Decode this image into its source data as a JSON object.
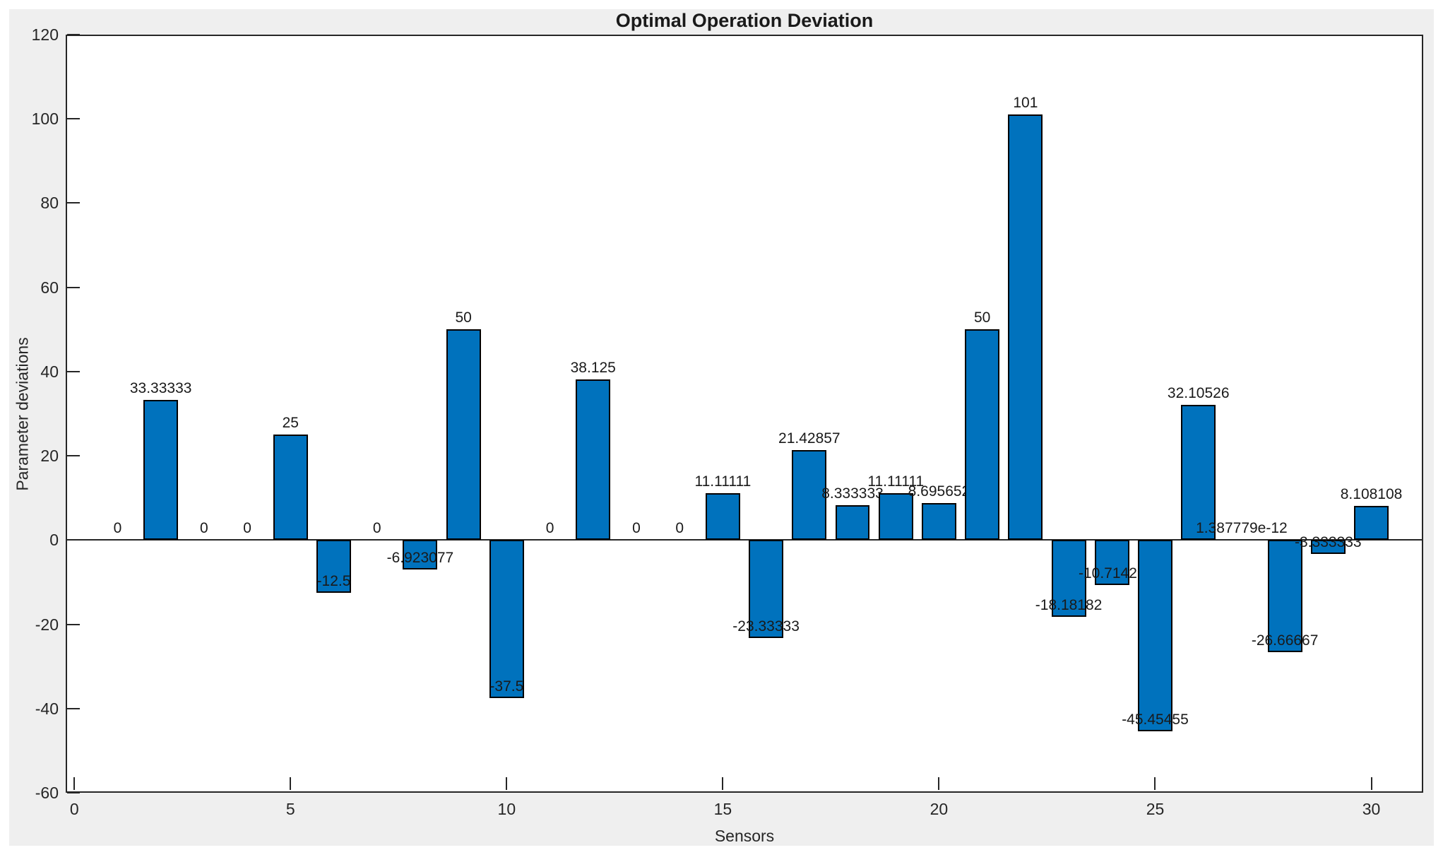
{
  "chart_data": {
    "type": "bar",
    "title": "Optimal Operation Deviation",
    "xlabel": "Sensors",
    "ylabel": "Parameter deviations",
    "categories": [
      1,
      2,
      3,
      4,
      5,
      6,
      7,
      8,
      9,
      10,
      11,
      12,
      13,
      14,
      15,
      16,
      17,
      18,
      19,
      20,
      21,
      22,
      23,
      24,
      25,
      26,
      27,
      28,
      29,
      30
    ],
    "values": [
      0,
      33.33333,
      0,
      0,
      25,
      -12.5,
      0,
      -6.923077,
      50,
      -37.5,
      0,
      38.125,
      0,
      0,
      11.11111,
      -23.33333,
      21.42857,
      8.333333,
      11.11111,
      8.695652,
      50,
      101,
      -18.18182,
      -10.71429,
      -45.45455,
      32.10526,
      1.387779e-12,
      -26.66667,
      -3.333333,
      8.108108
    ],
    "bar_value_labels": [
      "0",
      "33.33333",
      "0",
      "0",
      "25",
      "-12.5",
      "0",
      "-6.923077",
      "50",
      "-37.5",
      "0",
      "38.125",
      "0",
      "0",
      "11.11111",
      "-23.33333",
      "21.42857",
      "8.333333",
      "11.11111",
      "8.695652",
      "50",
      "101",
      "-18.18182",
      "-10.71429",
      "-45.45455",
      "32.10526",
      "1.387779e-12",
      "-26.66667",
      "-3.333333",
      "8.108108"
    ],
    "xlim": [
      -0.2,
      31.2
    ],
    "ylim": [
      -60,
      120
    ],
    "yticks": [
      120,
      100,
      80,
      60,
      40,
      20,
      0,
      -20,
      -40,
      -60
    ],
    "xticks": [
      0,
      5,
      10,
      15,
      20,
      25,
      30
    ],
    "grid": false,
    "legend_position": "none",
    "bar_width_units": 0.8,
    "colors": {
      "bar_fill": "#0072BD",
      "bar_edge": "#000000",
      "axis": "#262626",
      "figure_background": "#EFEFEF",
      "plot_background": "#FFFFFF",
      "text": "#1A1A1A"
    }
  }
}
